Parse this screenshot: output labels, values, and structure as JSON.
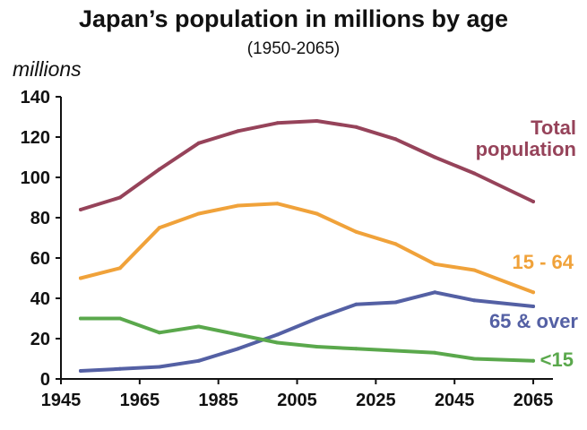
{
  "chart_data": {
    "type": "line",
    "title": "Japan’s population in millions by age",
    "subtitle": "(1950-2065)",
    "ylabel": "millions",
    "xlabel": "",
    "xlim": [
      1945,
      2070
    ],
    "ylim": [
      0,
      140
    ],
    "x_ticks": [
      1945,
      1965,
      1985,
      2005,
      2025,
      2045,
      2065
    ],
    "y_ticks": [
      0,
      20,
      40,
      60,
      80,
      100,
      120,
      140
    ],
    "grid": false,
    "legend": "none",
    "x": [
      1950,
      1960,
      1970,
      1980,
      1990,
      2000,
      2010,
      2020,
      2030,
      2040,
      2050,
      2065
    ],
    "series": [
      {
        "name": "Total population",
        "label_lines": [
          "Total",
          "population"
        ],
        "color": "#96435a",
        "values": [
          84,
          90,
          104,
          117,
          123,
          127,
          128,
          125,
          119,
          110,
          102,
          88
        ]
      },
      {
        "name": "15 - 64",
        "label_lines": [
          "15 - 64"
        ],
        "color": "#f0a23a",
        "values": [
          50,
          55,
          75,
          82,
          86,
          87,
          82,
          73,
          67,
          57,
          54,
          43
        ]
      },
      {
        "name": "65 & over",
        "label_lines": [
          "65 & over"
        ],
        "color": "#5460a4",
        "values": [
          4,
          5,
          6,
          9,
          15,
          22,
          30,
          37,
          38,
          43,
          39,
          36
        ]
      },
      {
        "name": "<15",
        "label_lines": [
          "<15"
        ],
        "color": "#5aa84c",
        "values": [
          30,
          30,
          23,
          26,
          22,
          18,
          16,
          15,
          14,
          13,
          10,
          9
        ]
      }
    ]
  }
}
